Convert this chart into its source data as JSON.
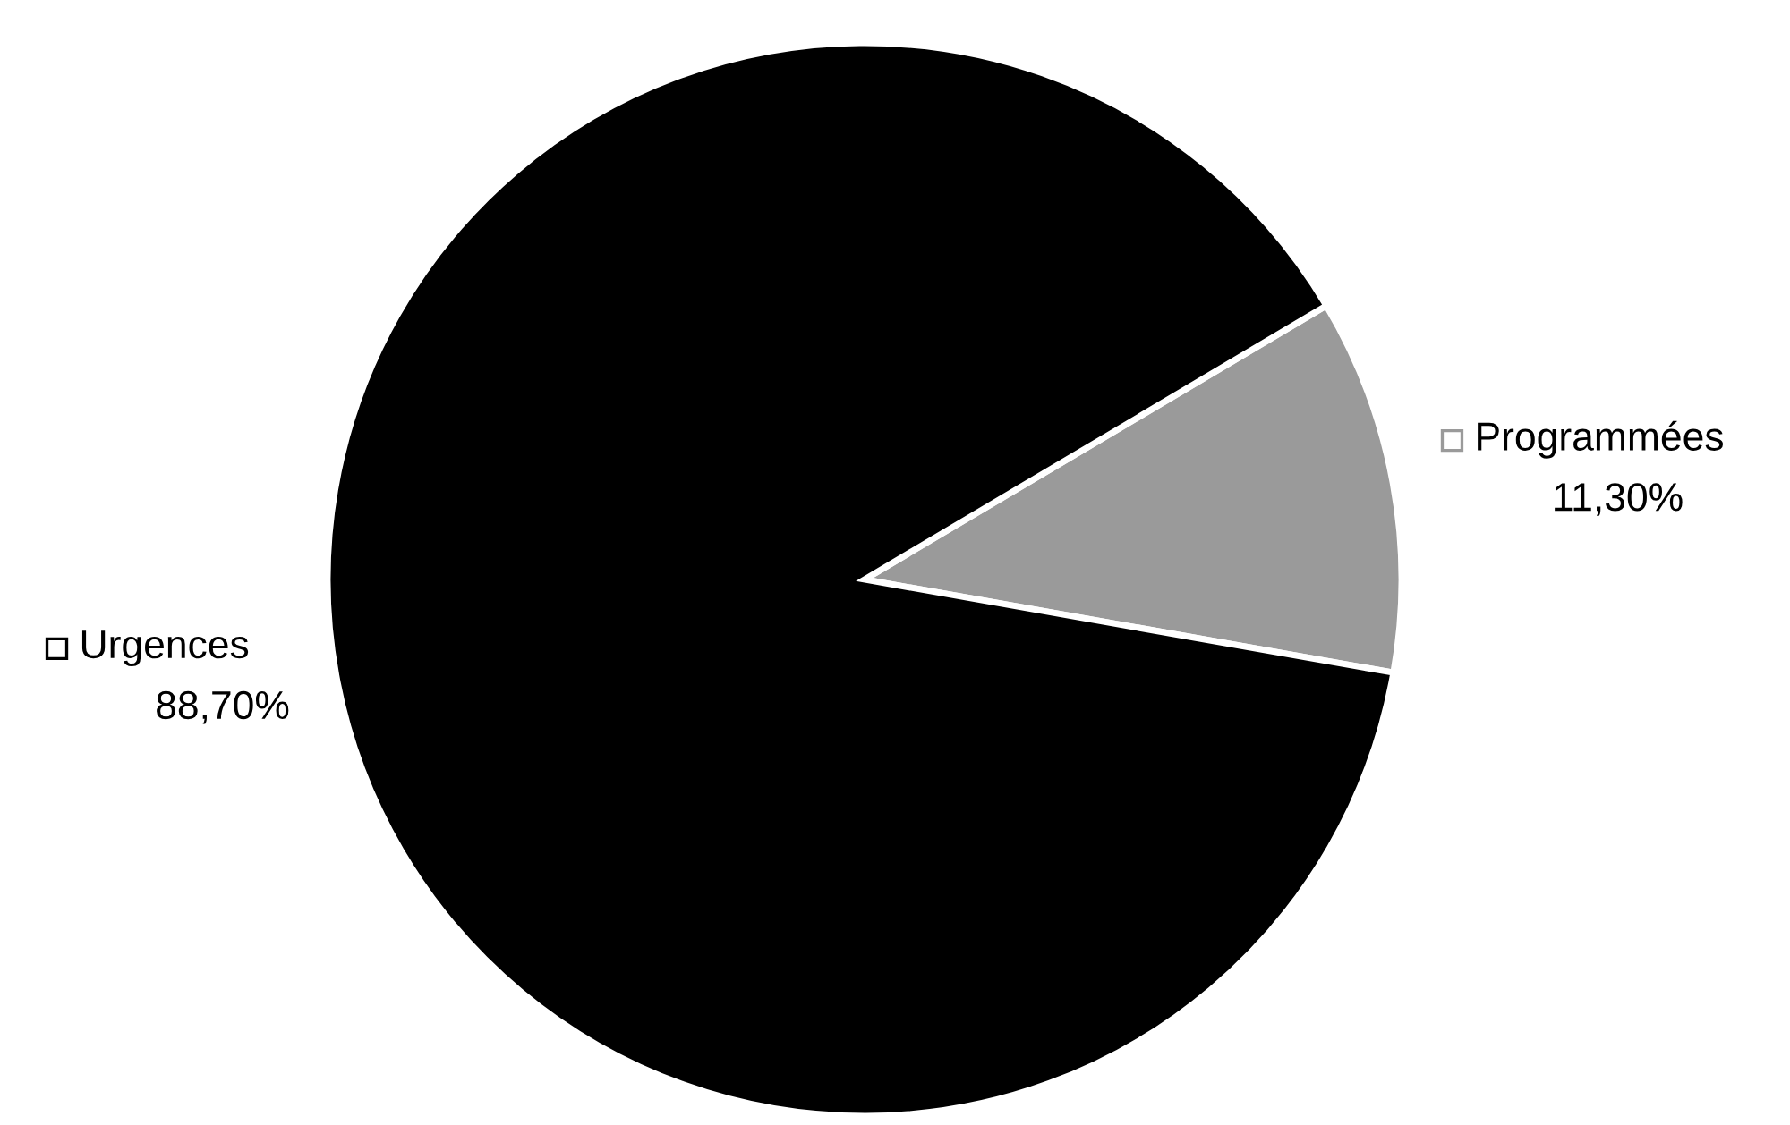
{
  "chart_data": {
    "type": "pie",
    "categories": [
      "Programmées",
      "Urgences"
    ],
    "values": [
      11.3,
      88.7
    ],
    "colors": [
      "#9a9a9a",
      "#000000"
    ],
    "value_labels": [
      "11,30%",
      "88,70%"
    ],
    "legend": "right"
  }
}
